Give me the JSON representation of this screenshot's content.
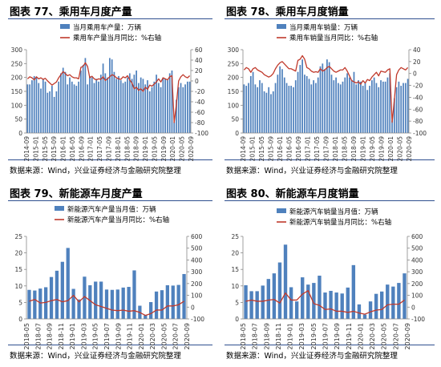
{
  "colors": {
    "bar": "#4f81bd",
    "line": "#c0392b",
    "axis": "#888888",
    "grid": "#e6e6e6",
    "text": "#333333"
  },
  "panels": [
    {
      "title": "图表 77、乘用车月度产量",
      "source": "数据来源：Wind，兴业证券经济与金融研究院整理"
    },
    {
      "title": "图表 78、乘用车月度销量",
      "source": "数据来源：Wind，兴业证券经济与金融研究院整理"
    },
    {
      "title": "图表 79、新能源车月度产量",
      "source": "数据来源：Wind，兴业证券经济与金融研究院整理"
    },
    {
      "title": "图表 80、新能源车月度销量",
      "source": "数据来源：Wind，兴业证券经济与金融研究院整理"
    }
  ],
  "chart_data": [
    {
      "type": "bar",
      "bar_legend": "当月乘用车产量：万辆",
      "line_legend": "乘用车产量当月同比：%右轴",
      "legend_position": "top",
      "grid": false,
      "ylim": [
        0,
        300
      ],
      "yticks": [
        0,
        50,
        100,
        150,
        200,
        250,
        300
      ],
      "y2lim": [
        -100,
        60
      ],
      "y2ticks": [
        -100,
        -80,
        -60,
        -40,
        -20,
        0,
        20,
        40,
        60
      ],
      "xticks": [
        "2014-09",
        "2015-01",
        "2015-05",
        "2015-09",
        "2016-01",
        "2016-05",
        "2016-09",
        "2017-01",
        "2017-05",
        "2017-09",
        "2018-01",
        "2018-05",
        "2018-09",
        "2019-01",
        "2019-05",
        "2019-09",
        "2020-01",
        "2020-05",
        "2020-09"
      ],
      "bars": [
        175,
        175,
        190,
        205,
        200,
        180,
        160,
        195,
        185,
        145,
        150,
        170,
        130,
        150,
        185,
        215,
        235,
        220,
        175,
        200,
        185,
        175,
        170,
        185,
        225,
        245,
        270,
        175,
        205,
        200,
        180,
        195,
        185,
        210,
        250,
        215,
        200,
        270,
        265,
        220,
        195,
        205,
        190,
        180,
        185,
        200,
        215,
        195,
        210,
        225,
        180,
        200,
        195,
        175,
        190,
        150,
        165,
        185,
        210,
        180,
        165,
        200,
        195,
        190,
        215,
        225,
        40,
        120,
        165,
        180,
        165,
        175,
        185,
        185
      ],
      "line": [
        4,
        8,
        6,
        2,
        8,
        4,
        6,
        3,
        5,
        0,
        -4,
        -8,
        -5,
        -2,
        6,
        12,
        18,
        14,
        10,
        12,
        8,
        6,
        6,
        4,
        26,
        28,
        35,
        28,
        6,
        9,
        4,
        2,
        4,
        3,
        8,
        1,
        4,
        8,
        12,
        10,
        6,
        4,
        3,
        8,
        6,
        10,
        2,
        -4,
        -15,
        -12,
        -18,
        -15,
        -20,
        -12,
        -16,
        -8,
        -10,
        -6,
        -2,
        4,
        -2,
        6,
        4,
        2,
        8,
        10,
        -80,
        -45,
        0,
        8,
        12,
        8,
        6,
        10
      ]
    },
    {
      "type": "bar",
      "bar_legend": "当月乘用车销量：万辆",
      "line_legend": "乘用车销量当月同比：%右轴",
      "legend_position": "top",
      "grid": false,
      "ylim": [
        0,
        300
      ],
      "yticks": [
        0,
        50,
        100,
        150,
        200,
        250,
        300
      ],
      "y2lim": [
        -100,
        40
      ],
      "y2ticks": [
        -100,
        -80,
        -60,
        -40,
        -20,
        0,
        20,
        40
      ],
      "xticks": [
        "2014-09",
        "2015-01",
        "2015-05",
        "2015-09",
        "2016-01",
        "2016-05",
        "2016-09",
        "2017-01",
        "2017-05",
        "2017-09",
        "2018-01",
        "2018-05",
        "2018-09",
        "2019-01",
        "2019-05",
        "2019-09",
        "2020-01",
        "2020-05",
        "2020-09"
      ],
      "bars": [
        175,
        170,
        180,
        205,
        220,
        175,
        165,
        190,
        180,
        150,
        145,
        165,
        140,
        150,
        180,
        210,
        240,
        230,
        200,
        180,
        170,
        170,
        165,
        190,
        220,
        245,
        265,
        210,
        205,
        195,
        175,
        190,
        180,
        200,
        240,
        250,
        230,
        265,
        255,
        210,
        190,
        200,
        180,
        175,
        185,
        200,
        215,
        200,
        190,
        220,
        175,
        190,
        185,
        170,
        180,
        155,
        170,
        190,
        200,
        180,
        165,
        190,
        185,
        185,
        200,
        215,
        45,
        125,
        165,
        185,
        170,
        180,
        180,
        195
      ],
      "line": [
        6,
        10,
        8,
        2,
        8,
        10,
        6,
        4,
        2,
        -2,
        -4,
        -6,
        -4,
        0,
        8,
        14,
        18,
        20,
        16,
        12,
        8,
        8,
        6,
        4,
        22,
        24,
        30,
        24,
        10,
        8,
        4,
        2,
        3,
        2,
        8,
        4,
        6,
        10,
        12,
        8,
        4,
        2,
        4,
        6,
        6,
        10,
        4,
        -4,
        -12,
        -14,
        -16,
        -14,
        -18,
        -12,
        -16,
        -10,
        -12,
        -6,
        -2,
        2,
        -4,
        4,
        3,
        2,
        6,
        8,
        -82,
        -44,
        -2,
        6,
        10,
        8,
        6,
        10
      ]
    },
    {
      "type": "bar",
      "bar_legend": "新能源汽车产量当月值：万辆",
      "line_legend": "新能源汽车产量当月同比：%右轴",
      "legend_position": "top",
      "grid": false,
      "ylim": [
        0,
        25
      ],
      "yticks": [
        0,
        5,
        10,
        15,
        20,
        25
      ],
      "y2lim": [
        -100,
        600
      ],
      "y2ticks": [
        -100,
        0,
        100,
        200,
        300,
        400,
        500,
        600
      ],
      "xticks": [
        "2018-05",
        "2018-07",
        "2018-09",
        "2018-11",
        "2019-01",
        "2019-03",
        "2019-05",
        "2019-07",
        "2019-09",
        "2019-11",
        "2020-01",
        "2020-03",
        "2020-05",
        "2020-07",
        "2020-09"
      ],
      "bars": [
        8.8,
        8.6,
        9.2,
        9.6,
        12.7,
        14.6,
        17.3,
        21.5,
        9.1,
        5.9,
        12.8,
        10.2,
        11.3,
        11.3,
        8.9,
        8.8,
        8.9,
        9.5,
        9.7,
        14.7,
        4.0,
        1.1,
        5.1,
        8.3,
        8.7,
        10.2,
        10.1,
        10.3,
        13.6
      ],
      "line": [
        50,
        65,
        35,
        40,
        55,
        65,
        45,
        55,
        100,
        45,
        90,
        55,
        20,
        5,
        -10,
        -25,
        -30,
        -25,
        -35,
        -30,
        -45,
        -70,
        -55,
        -25,
        -25,
        10,
        10,
        20,
        50
      ]
    },
    {
      "type": "bar",
      "bar_legend": "新能源汽车销量当月值：万辆",
      "line_legend": "新能源汽车销量当月同比：%右轴",
      "legend_position": "top",
      "grid": false,
      "ylim": [
        0,
        25
      ],
      "yticks": [
        0,
        5,
        10,
        15,
        20,
        25
      ],
      "y2lim": [
        -100,
        600
      ],
      "y2ticks": [
        -100,
        0,
        100,
        200,
        300,
        400,
        500,
        600
      ],
      "xticks": [
        "2018-05",
        "2018-07",
        "2018-09",
        "2018-11",
        "2019-01",
        "2019-03",
        "2019-05",
        "2019-07",
        "2019-09",
        "2019-11",
        "2020-01",
        "2020-03",
        "2020-05",
        "2020-07",
        "2020-09"
      ],
      "bars": [
        10.2,
        8.4,
        8.4,
        10.1,
        12.1,
        13.8,
        17.1,
        22.5,
        9.6,
        5.3,
        12.6,
        10.4,
        10.9,
        13.1,
        8.0,
        8.5,
        8.0,
        7.7,
        9.5,
        16.3,
        4.4,
        1.3,
        5.3,
        7.6,
        8.3,
        10.4,
        9.8,
        10.9,
        13.8
      ],
      "line": [
        50,
        60,
        50,
        50,
        60,
        65,
        35,
        120,
        60,
        60,
        110,
        140,
        30,
        15,
        -20,
        -15,
        -35,
        -35,
        -45,
        -35,
        -50,
        -60,
        -40,
        -25,
        -20,
        20,
        25,
        25,
        60
      ]
    }
  ]
}
